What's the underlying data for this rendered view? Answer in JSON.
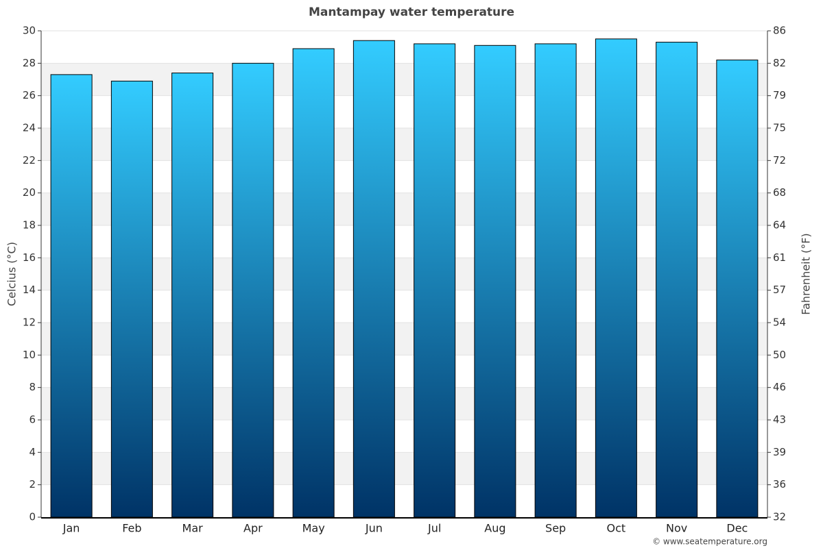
{
  "chart_data": {
    "type": "bar",
    "title": "Mantampay water temperature",
    "y_axis_title": "Celcius (°C)",
    "y2_axis_title": "Fahrenheit (°F)",
    "credit": "© www.seatemperature.org",
    "categories": [
      "Jan",
      "Feb",
      "Mar",
      "Apr",
      "May",
      "Jun",
      "Jul",
      "Aug",
      "Sep",
      "Oct",
      "Nov",
      "Dec"
    ],
    "values": [
      27.3,
      26.9,
      27.4,
      28.0,
      28.9,
      29.4,
      29.2,
      29.1,
      29.2,
      29.5,
      29.3,
      28.2
    ],
    "color_top": "#33ccff",
    "color_bottom": "#003366",
    "ylim": [
      0,
      30
    ],
    "yticks": [
      0,
      2,
      4,
      6,
      8,
      10,
      12,
      14,
      16,
      18,
      20,
      22,
      24,
      26,
      28,
      30
    ],
    "y2lim": [
      32,
      86
    ],
    "y2ticks": [
      32,
      {
        "value": 35.6,
        "label": "36"
      },
      {
        "value": 39.2,
        "label": "39"
      },
      {
        "value": 42.8,
        "label": "43"
      },
      {
        "value": 46.4,
        "label": "46"
      },
      50,
      {
        "value": 53.6,
        "label": "54"
      },
      {
        "value": 57.2,
        "label": "57"
      },
      {
        "value": 60.8,
        "label": "61"
      },
      {
        "value": 64.4,
        "label": "64"
      },
      68,
      {
        "value": 71.6,
        "label": "72"
      },
      {
        "value": 75.2,
        "label": "75"
      },
      {
        "value": 78.8,
        "label": "79"
      },
      {
        "value": 82.4,
        "label": "82"
      },
      86
    ],
    "grid": true
  }
}
